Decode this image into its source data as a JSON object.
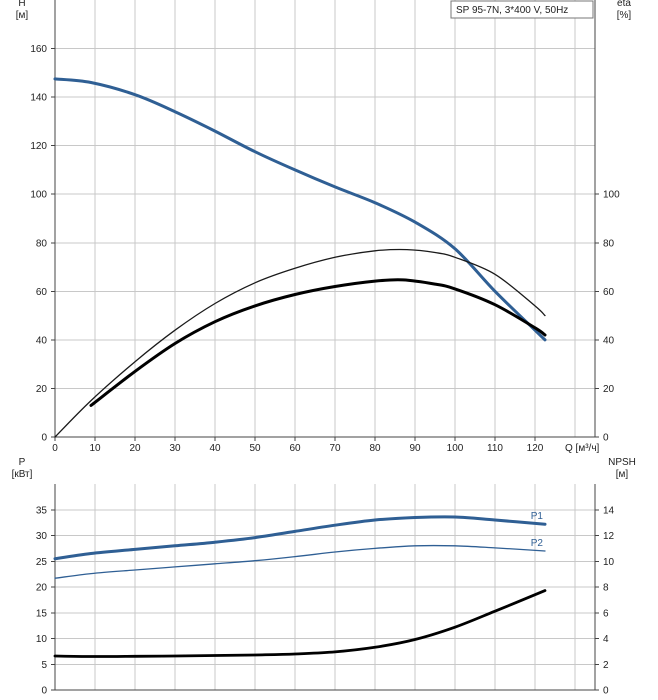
{
  "chart_data": [
    {
      "type": "line",
      "title": "SP 95-7N, 3*400 V, 50Hz",
      "xlabel": "Q [м³/ч]",
      "x_tick_labels": [
        "0",
        "10",
        "20",
        "30",
        "40",
        "50",
        "60",
        "70",
        "80",
        "90",
        "100",
        "110",
        "120"
      ],
      "xlim": [
        0,
        135
      ],
      "ylabel_left": [
        "H",
        "[м]"
      ],
      "ylabel_right": [
        "eta",
        "[%]"
      ],
      "y_left_ticks": [
        "0",
        "20",
        "40",
        "60",
        "80",
        "100",
        "120",
        "140",
        "160"
      ],
      "ylim_left": [
        0,
        180
      ],
      "y_right_ticks": [
        "0",
        "20",
        "40",
        "60",
        "80",
        "100"
      ],
      "ylim_right": [
        0,
        180
      ],
      "grid": true,
      "series": [
        {
          "color": "#2f5f94",
          "width": 3,
          "axis": "left",
          "points": [
            [
              0,
              147.5
            ],
            [
              9,
              146
            ],
            [
              20,
              141
            ],
            [
              30,
              134
            ],
            [
              40,
              126
            ],
            [
              50,
              117.5
            ],
            [
              60,
              110
            ],
            [
              70,
              103
            ],
            [
              80,
              96.5
            ],
            [
              90,
              88.5
            ],
            [
              100,
              77.5
            ],
            [
              110,
              60
            ],
            [
              120,
              44
            ],
            [
              122.5,
              40
            ]
          ]
        },
        {
          "color": "#1a1a1a",
          "width": 1.3,
          "axis": "left",
          "points": [
            [
              0,
              0
            ],
            [
              9,
              15
            ],
            [
              20,
              31
            ],
            [
              30,
              44
            ],
            [
              40,
              55
            ],
            [
              50,
              63.5
            ],
            [
              60,
              69.5
            ],
            [
              70,
              74
            ],
            [
              80,
              76.7
            ],
            [
              88,
              77.2
            ],
            [
              95,
              76
            ],
            [
              100,
              74
            ],
            [
              110,
              67
            ],
            [
              120,
              54
            ],
            [
              122.5,
              50
            ]
          ]
        },
        {
          "color": "#000000",
          "width": 3,
          "axis": "left",
          "points": [
            [
              9,
              13
            ],
            [
              20,
              27
            ],
            [
              30,
              38.5
            ],
            [
              40,
              47.5
            ],
            [
              50,
              54
            ],
            [
              60,
              58.7
            ],
            [
              70,
              62
            ],
            [
              80,
              64.2
            ],
            [
              87,
              64.7
            ],
            [
              95,
              63
            ],
            [
              100,
              61
            ],
            [
              110,
              54.5
            ],
            [
              120,
              45
            ],
            [
              122.5,
              42
            ]
          ]
        }
      ]
    },
    {
      "type": "line",
      "xlim": [
        0,
        135
      ],
      "ylabel_left": [
        "P",
        "[кВт]"
      ],
      "ylabel_right": [
        "NPSH",
        "[м]"
      ],
      "y_left_ticks": [
        "0",
        "5",
        "10",
        "15",
        "20",
        "25",
        "30",
        "35"
      ],
      "ylim_left": [
        0,
        40
      ],
      "y_right_ticks": [
        "0",
        "2",
        "4",
        "6",
        "8",
        "10",
        "12",
        "14"
      ],
      "ylim_right": [
        0,
        16
      ],
      "grid": true,
      "series": [
        {
          "name": "P1",
          "color": "#2f5f94",
          "width": 3,
          "axis": "left",
          "points": [
            [
              0,
              25.5
            ],
            [
              9,
              26.5
            ],
            [
              20,
              27.3
            ],
            [
              30,
              28
            ],
            [
              40,
              28.7
            ],
            [
              50,
              29.6
            ],
            [
              60,
              30.8
            ],
            [
              70,
              32
            ],
            [
              80,
              33
            ],
            [
              90,
              33.5
            ],
            [
              100,
              33.6
            ],
            [
              110,
              33
            ],
            [
              122.5,
              32.2
            ]
          ]
        },
        {
          "name": "P2",
          "color": "#2f5f94",
          "width": 1.3,
          "axis": "left",
          "points": [
            [
              0,
              21.7
            ],
            [
              9,
              22.6
            ],
            [
              20,
              23.3
            ],
            [
              30,
              23.9
            ],
            [
              40,
              24.5
            ],
            [
              50,
              25.1
            ],
            [
              60,
              25.9
            ],
            [
              70,
              26.8
            ],
            [
              80,
              27.5
            ],
            [
              90,
              28
            ],
            [
              100,
              28
            ],
            [
              110,
              27.6
            ],
            [
              122.5,
              27
            ]
          ]
        },
        {
          "color": "#000000",
          "width": 2.8,
          "axis": "right",
          "points": [
            [
              0,
              2.64
            ],
            [
              9,
              2.6
            ],
            [
              20,
              2.62
            ],
            [
              30,
              2.64
            ],
            [
              40,
              2.68
            ],
            [
              50,
              2.72
            ],
            [
              60,
              2.8
            ],
            [
              70,
              2.96
            ],
            [
              80,
              3.32
            ],
            [
              90,
              3.92
            ],
            [
              100,
              4.88
            ],
            [
              110,
              6.12
            ],
            [
              122.5,
              7.72
            ]
          ]
        }
      ]
    }
  ]
}
